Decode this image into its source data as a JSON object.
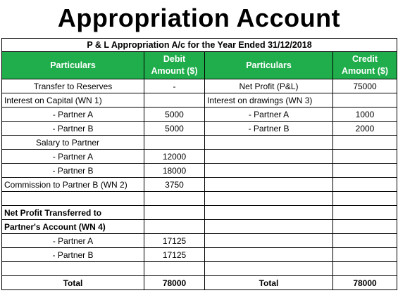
{
  "title": "Appropriation Account",
  "caption": "P & L Appropriation A/c for the Year Ended 31/12/2018",
  "headers": {
    "particulars_left": "Particulars",
    "debit": "Debit Amount ($)",
    "particulars_right": "Particulars",
    "credit": "Credit Amount ($)"
  },
  "rows": [
    {
      "l": "Transfer to Reserves",
      "d": "-",
      "r": "Net Profit (P&L)",
      "c": "75000"
    },
    {
      "l": "Interest on Capital (WN 1)",
      "d": "",
      "r": "Interest on drawings (WN 3)",
      "c": ""
    },
    {
      "l": "- Partner A",
      "d": "5000",
      "r": "- Partner A",
      "c": "1000"
    },
    {
      "l": "- Partner B",
      "d": "5000",
      "r": "- Partner B",
      "c": "2000"
    },
    {
      "l": "Salary to Partner",
      "d": "",
      "r": "",
      "c": ""
    },
    {
      "l": "- Partner A",
      "d": "12000",
      "r": "",
      "c": ""
    },
    {
      "l": "- Partner B",
      "d": "18000",
      "r": "",
      "c": ""
    },
    {
      "l": "Commission to Partner B (WN 2)",
      "d": "3750",
      "r": "",
      "c": ""
    },
    {
      "l": "",
      "d": "",
      "r": "",
      "c": ""
    },
    {
      "l": "Net Profit Transferred to",
      "d": "",
      "r": "",
      "c": ""
    },
    {
      "l": "Partner's Account (WN 4)",
      "d": "",
      "r": "",
      "c": ""
    },
    {
      "l": "- Partner A",
      "d": "17125",
      "r": "",
      "c": ""
    },
    {
      "l": "- Partner B",
      "d": "17125",
      "r": "",
      "c": ""
    },
    {
      "l": "",
      "d": "",
      "r": "",
      "c": ""
    }
  ],
  "total": {
    "l": "Total",
    "d": "78000",
    "r": "Total",
    "c": "78000"
  }
}
